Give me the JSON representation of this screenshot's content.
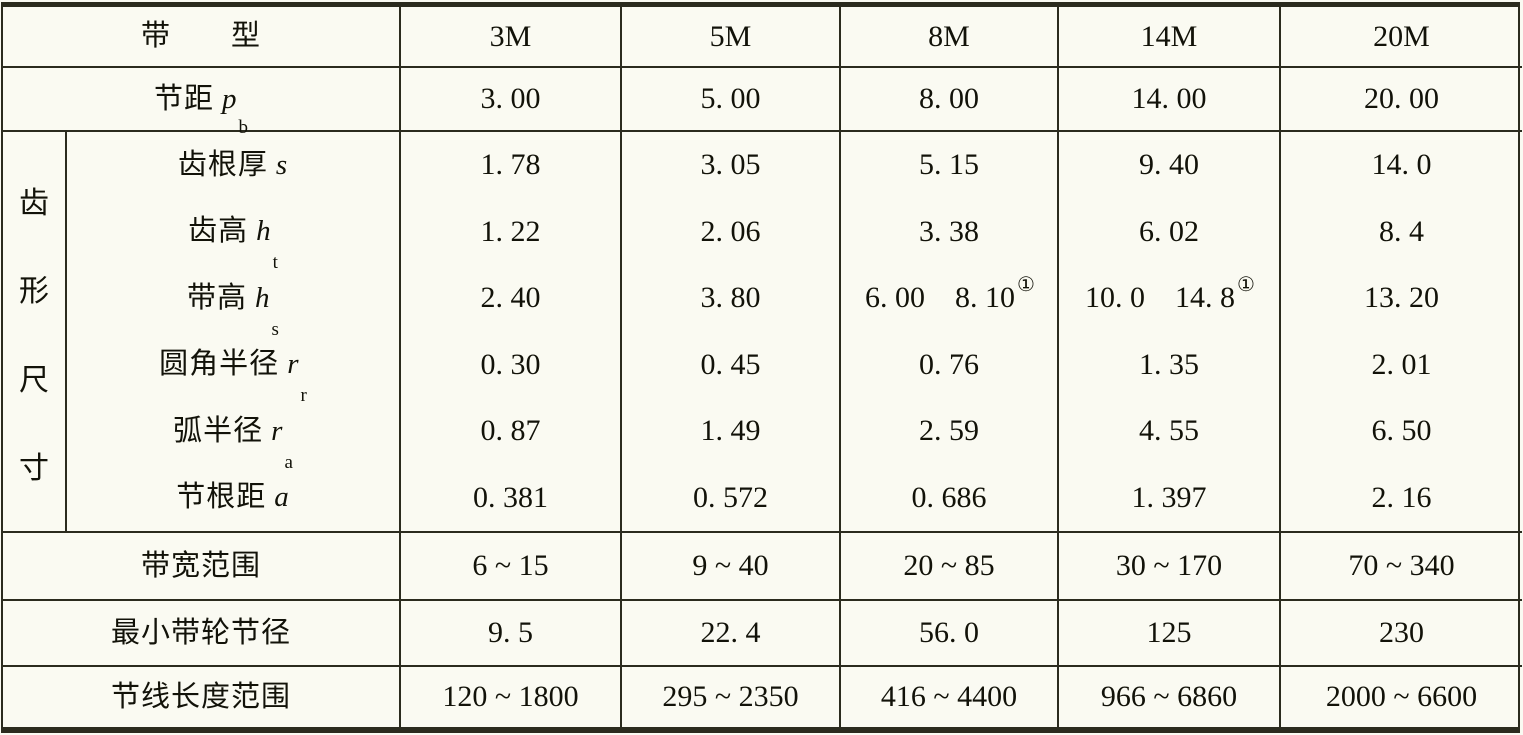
{
  "colors": {
    "background": "#fafaf2",
    "line": "#2b2b1e",
    "text": "#121209"
  },
  "header": {
    "row_label": "带　　型",
    "cols": [
      "3M",
      "5M",
      "8M",
      "14M",
      "20M"
    ]
  },
  "pitch": {
    "label": "节距",
    "sym": "p",
    "sub": "b",
    "cells": [
      "3. 00",
      "5. 00",
      "8. 00",
      "14. 00",
      "20. 00"
    ]
  },
  "tooth": {
    "group": {
      "c0": "齿",
      "c1": "形",
      "c2": "尺",
      "c3": "寸"
    },
    "rows": [
      {
        "label": "齿根厚",
        "sym": "s",
        "sub": "",
        "cells": [
          {
            "t": "1. 78"
          },
          {
            "t": "3. 05"
          },
          {
            "t": "5. 15"
          },
          {
            "t": "9. 40"
          },
          {
            "t": "14. 0"
          }
        ]
      },
      {
        "label": "齿高",
        "sym": "h",
        "sub": "t",
        "cells": [
          {
            "t": "1. 22"
          },
          {
            "t": "2. 06"
          },
          {
            "t": "3. 38"
          },
          {
            "t": "6. 02"
          },
          {
            "t": "8. 4"
          }
        ]
      },
      {
        "label": "带高",
        "sym": "h",
        "sub": "s",
        "cells": [
          {
            "t": "2. 40"
          },
          {
            "t": "3. 80"
          },
          {
            "t": "6. 00　8. 10",
            "sup": "①"
          },
          {
            "t": "10. 0　14. 8",
            "sup": "①"
          },
          {
            "t": "13. 20"
          }
        ]
      },
      {
        "label": "圆角半径",
        "sym": "r",
        "sub": "r",
        "cells": [
          {
            "t": "0. 30"
          },
          {
            "t": "0. 45"
          },
          {
            "t": "0. 76"
          },
          {
            "t": "1. 35"
          },
          {
            "t": "2. 01"
          }
        ]
      },
      {
        "label": "弧半径",
        "sym": "r",
        "sub": "a",
        "cells": [
          {
            "t": "0. 87"
          },
          {
            "t": "1. 49"
          },
          {
            "t": "2. 59"
          },
          {
            "t": "4. 55"
          },
          {
            "t": "6. 50"
          }
        ]
      },
      {
        "label": "节根距",
        "sym": "a",
        "sub": "",
        "cells": [
          {
            "t": "0. 381"
          },
          {
            "t": "0. 572"
          },
          {
            "t": "0. 686"
          },
          {
            "t": "1. 397"
          },
          {
            "t": "2. 16"
          }
        ]
      }
    ]
  },
  "width_range": {
    "label": "带宽范围",
    "cells": [
      "6 ~ 15",
      "9 ~ 40",
      "20 ~ 85",
      "30 ~ 170",
      "70 ~ 340"
    ]
  },
  "min_pulley": {
    "label": "最小带轮节径",
    "cells": [
      "9. 5",
      "22. 4",
      "56. 0",
      "125",
      "230"
    ]
  },
  "pitch_length": {
    "label": "节线长度范围",
    "cells": [
      "120 ~ 1800",
      "295 ~ 2350",
      "416 ~ 4400",
      "966 ~ 6860",
      "2000 ~ 6600"
    ]
  }
}
